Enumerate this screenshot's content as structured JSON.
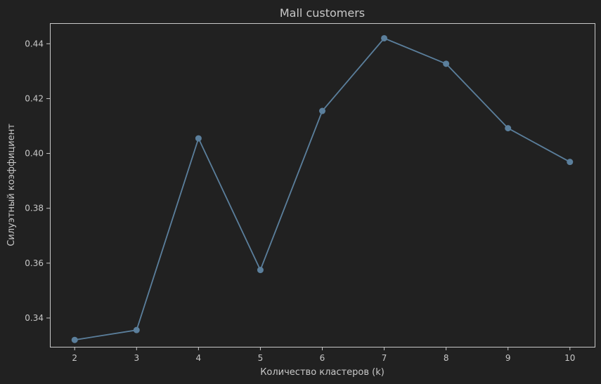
{
  "chart_data": {
    "type": "line",
    "title": "Mall customers",
    "xlabel": "Количество кластеров (k)",
    "ylabel": "Силуэтный коэффициент",
    "x": [
      2,
      3,
      4,
      5,
      6,
      7,
      8,
      9,
      10
    ],
    "series": [
      {
        "values": [
          0.332,
          0.3356,
          0.4055,
          0.3575,
          0.4155,
          0.442,
          0.4327,
          0.4092,
          0.3969
        ]
      }
    ],
    "xlim": [
      1.6,
      10.4
    ],
    "ylim": [
      0.3295,
      0.4475
    ],
    "xticks": [
      2,
      3,
      4,
      5,
      6,
      7,
      8,
      9,
      10
    ],
    "xtick_labels": [
      "2",
      "3",
      "4",
      "5",
      "6",
      "7",
      "8",
      "9",
      "10"
    ],
    "yticks": [
      0.34,
      0.36,
      0.38,
      0.4,
      0.42,
      0.44
    ],
    "ytick_labels": [
      "0.34",
      "0.36",
      "0.38",
      "0.40",
      "0.42",
      "0.44"
    ],
    "grid": false,
    "legend": "none",
    "colors": {
      "background": "#212121",
      "line": "#5b7f9c",
      "marker": "#5b7f9c",
      "axes": "#c8c8c8",
      "text": "#c8c8c8"
    }
  }
}
